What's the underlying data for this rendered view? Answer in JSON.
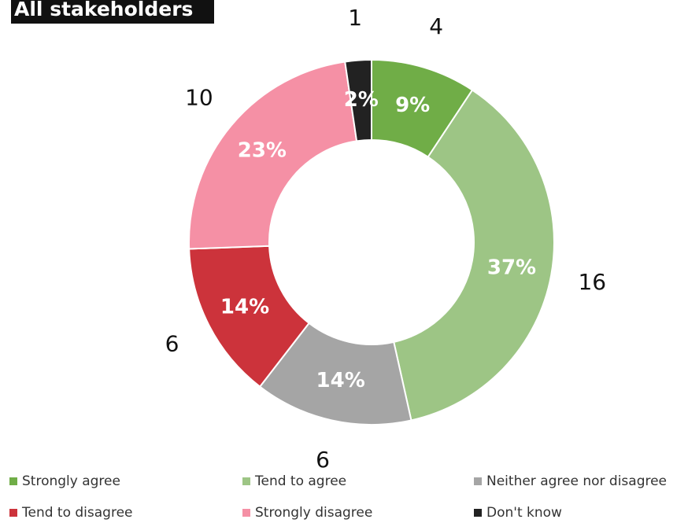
{
  "chart_data": {
    "type": "donut",
    "title": "All stakeholders",
    "categories": [
      "Strongly agree",
      "Tend to agree",
      "Neither agree nor disagree",
      "Tend to disagree",
      "Strongly disagree",
      "Don't know"
    ],
    "values": [
      4,
      16,
      6,
      6,
      10,
      1
    ],
    "percent_labels": [
      "9%",
      "37%",
      "14%",
      "14%",
      "23%",
      "2%"
    ],
    "colors": [
      "#70ad47",
      "#9dc585",
      "#a5a5a5",
      "#cc333b",
      "#f590a5",
      "#222222"
    ],
    "legend": "bottom"
  }
}
